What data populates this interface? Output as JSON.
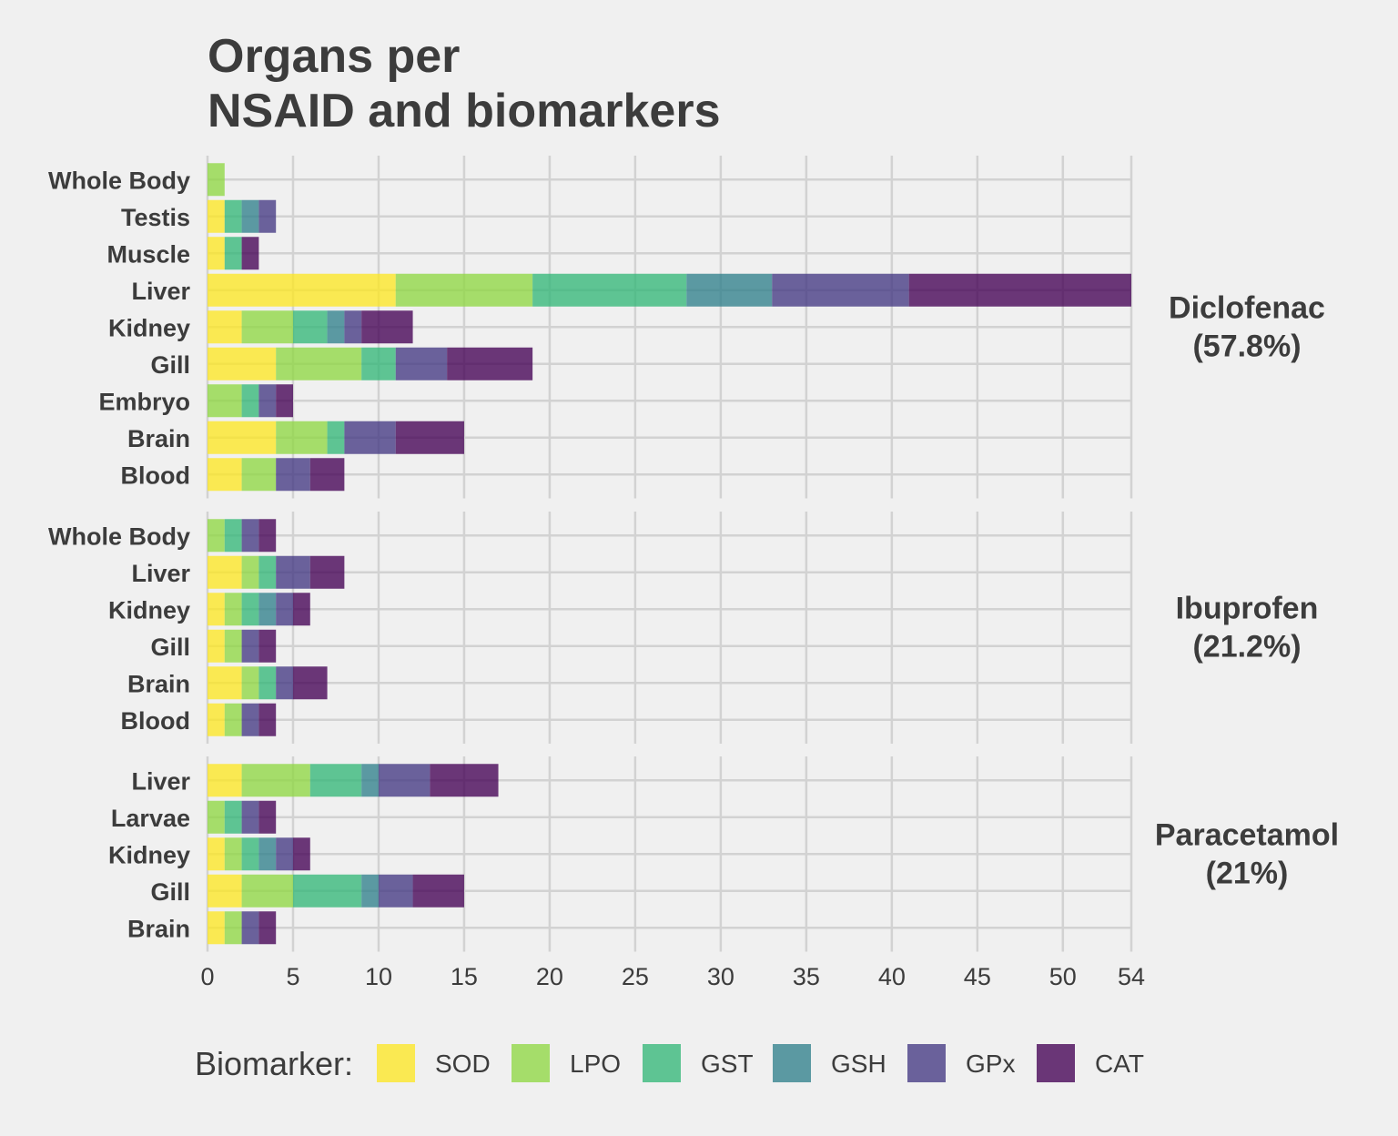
{
  "chart_data": {
    "type": "bar",
    "orientation": "horizontal",
    "stacked": true,
    "title_lines": [
      "Organs per",
      "NSAID and biomarkers"
    ],
    "xlabel": "",
    "ylabel": "",
    "xlim": [
      0,
      54
    ],
    "x_ticks": [
      "0",
      "5",
      "10",
      "15",
      "20",
      "25",
      "30",
      "35",
      "40",
      "45",
      "50",
      "54"
    ],
    "x_tick_values": [
      0,
      5,
      10,
      15,
      20,
      25,
      30,
      35,
      40,
      45,
      50,
      54
    ],
    "grid": true,
    "legend": {
      "title": "Biomarker:",
      "position": "bottom",
      "entries": [
        {
          "name": "SOD",
          "color": "#fde725"
        },
        {
          "name": "LPO",
          "color": "#8fd744"
        },
        {
          "name": "GST",
          "color": "#35b779"
        },
        {
          "name": "GSH",
          "color": "#31808c"
        },
        {
          "name": "GPx",
          "color": "#443983"
        },
        {
          "name": "CAT",
          "color": "#440154"
        }
      ]
    },
    "series_order": [
      "SOD",
      "LPO",
      "GST",
      "GSH",
      "GPx",
      "CAT"
    ],
    "facets": [
      {
        "label_lines": [
          "Diclofenac",
          "(57.8%)"
        ],
        "rows": [
          {
            "organ": "Whole Body",
            "values": [
              0,
              1,
              0,
              0,
              0,
              0
            ]
          },
          {
            "organ": "Testis",
            "values": [
              1,
              0,
              1,
              1,
              1,
              0
            ]
          },
          {
            "organ": "Muscle",
            "values": [
              1,
              0,
              1,
              0,
              0,
              1
            ]
          },
          {
            "organ": "Liver",
            "values": [
              11,
              8,
              9,
              5,
              8,
              13
            ]
          },
          {
            "organ": "Kidney",
            "values": [
              2,
              3,
              2,
              1,
              1,
              3
            ]
          },
          {
            "organ": "Gill",
            "values": [
              4,
              5,
              2,
              0,
              3,
              5
            ]
          },
          {
            "organ": "Embryo",
            "values": [
              0,
              2,
              1,
              0,
              1,
              1
            ]
          },
          {
            "organ": "Brain",
            "values": [
              4,
              3,
              1,
              0,
              3,
              4
            ]
          },
          {
            "organ": "Blood",
            "values": [
              2,
              2,
              0,
              0,
              2,
              2
            ]
          }
        ]
      },
      {
        "label_lines": [
          "Ibuprofen",
          "(21.2%)"
        ],
        "rows": [
          {
            "organ": "Whole Body",
            "values": [
              0,
              1,
              1,
              0,
              1,
              1
            ]
          },
          {
            "organ": "Liver",
            "values": [
              2,
              1,
              1,
              0,
              2,
              2
            ]
          },
          {
            "organ": "Kidney",
            "values": [
              1,
              1,
              1,
              1,
              1,
              1
            ]
          },
          {
            "organ": "Gill",
            "values": [
              1,
              1,
              0,
              0,
              1,
              1
            ]
          },
          {
            "organ": "Brain",
            "values": [
              2,
              1,
              1,
              0,
              1,
              2
            ]
          },
          {
            "organ": "Blood",
            "values": [
              1,
              1,
              0,
              0,
              1,
              1
            ]
          }
        ]
      },
      {
        "label_lines": [
          "Paracetamol",
          "(21%)"
        ],
        "rows": [
          {
            "organ": "Liver",
            "values": [
              2,
              4,
              3,
              1,
              3,
              4
            ]
          },
          {
            "organ": "Larvae",
            "values": [
              0,
              1,
              1,
              0,
              1,
              1
            ]
          },
          {
            "organ": "Kidney",
            "values": [
              1,
              1,
              1,
              1,
              1,
              1
            ]
          },
          {
            "organ": "Gill",
            "values": [
              2,
              3,
              4,
              1,
              2,
              3
            ]
          },
          {
            "organ": "Brain",
            "values": [
              1,
              1,
              0,
              0,
              1,
              1
            ]
          }
        ]
      }
    ]
  }
}
